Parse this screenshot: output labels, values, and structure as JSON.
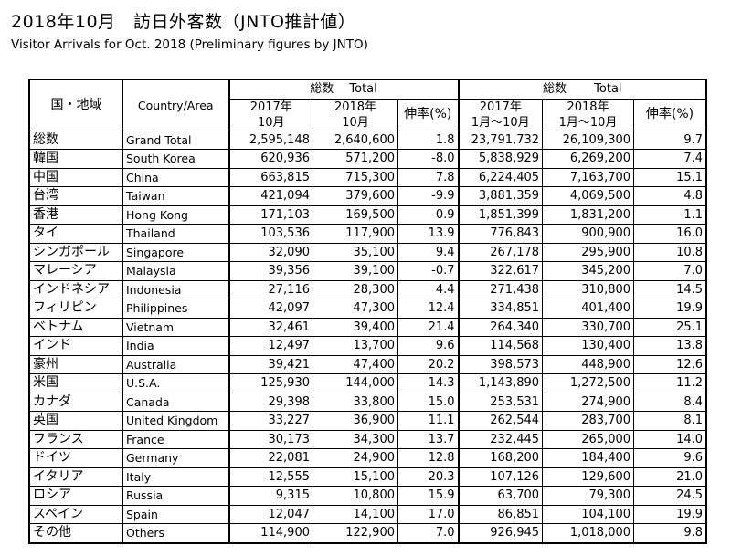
{
  "title": "2018年10月　訪日外客数（JNTO推計値）",
  "subtitle": "Visitor Arrivals for Oct. 2018 (Preliminary figures by JNTO)",
  "headers": {
    "region_jp": "国・地域",
    "region_en": "Country/Area",
    "month_group": "総数　 Total",
    "ytd_group": "総数　　 Total",
    "m2017_line1": "2017年",
    "m2017_line2": "10月",
    "m2018_line1": "2018年",
    "m2018_line2": "10月",
    "growth": "伸率(%)",
    "y2017_line1": "2017年",
    "y2017_line2": "1月～10月",
    "y2018_line1": "2018年",
    "y2018_line2": "1月～10月",
    "growth_ytd": "伸率(%)"
  },
  "rows": [
    {
      "jp": "総数",
      "en": "Grand Total",
      "m2017": "2,595,148",
      "m2018": "2,640,600",
      "mg": "1.8",
      "y2017": "23,791,732",
      "y2018": "26,109,300",
      "yg": "9.7"
    },
    {
      "jp": "韓国",
      "en": "South Korea",
      "m2017": "620,936",
      "m2018": "571,200",
      "mg": "-8.0",
      "y2017": "5,838,929",
      "y2018": "6,269,200",
      "yg": "7.4"
    },
    {
      "jp": "中国",
      "en": "China",
      "m2017": "663,815",
      "m2018": "715,300",
      "mg": "7.8",
      "y2017": "6,224,405",
      "y2018": "7,163,700",
      "yg": "15.1"
    },
    {
      "jp": "台湾",
      "en": "Taiwan",
      "m2017": "421,094",
      "m2018": "379,600",
      "mg": "-9.9",
      "y2017": "3,881,359",
      "y2018": "4,069,500",
      "yg": "4.8"
    },
    {
      "jp": "香港",
      "en": "Hong Kong",
      "m2017": "171,103",
      "m2018": "169,500",
      "mg": "-0.9",
      "y2017": "1,851,399",
      "y2018": "1,831,200",
      "yg": "-1.1"
    },
    {
      "jp": "タイ",
      "en": "Thailand",
      "m2017": "103,536",
      "m2018": "117,900",
      "mg": "13.9",
      "y2017": "776,843",
      "y2018": "900,900",
      "yg": "16.0"
    },
    {
      "jp": "シンガポール",
      "en": "Singapore",
      "m2017": "32,090",
      "m2018": "35,100",
      "mg": "9.4",
      "y2017": "267,178",
      "y2018": "295,900",
      "yg": "10.8"
    },
    {
      "jp": "マレーシア",
      "en": "Malaysia",
      "m2017": "39,356",
      "m2018": "39,100",
      "mg": "-0.7",
      "y2017": "322,617",
      "y2018": "345,200",
      "yg": "7.0"
    },
    {
      "jp": "インドネシア",
      "en": "Indonesia",
      "m2017": "27,116",
      "m2018": "28,300",
      "mg": "4.4",
      "y2017": "271,438",
      "y2018": "310,800",
      "yg": "14.5"
    },
    {
      "jp": "フィリピン",
      "en": "Philippines",
      "m2017": "42,097",
      "m2018": "47,300",
      "mg": "12.4",
      "y2017": "334,851",
      "y2018": "401,400",
      "yg": "19.9"
    },
    {
      "jp": "ベトナム",
      "en": "Vietnam",
      "m2017": "32,461",
      "m2018": "39,400",
      "mg": "21.4",
      "y2017": "264,340",
      "y2018": "330,700",
      "yg": "25.1"
    },
    {
      "jp": "インド",
      "en": "India",
      "m2017": "12,497",
      "m2018": "13,700",
      "mg": "9.6",
      "y2017": "114,568",
      "y2018": "130,400",
      "yg": "13.8"
    },
    {
      "jp": "豪州",
      "en": "Australia",
      "m2017": "39,421",
      "m2018": "47,400",
      "mg": "20.2",
      "y2017": "398,573",
      "y2018": "448,900",
      "yg": "12.6"
    },
    {
      "jp": "米国",
      "en": "U.S.A.",
      "m2017": "125,930",
      "m2018": "144,000",
      "mg": "14.3",
      "y2017": "1,143,890",
      "y2018": "1,272,500",
      "yg": "11.2"
    },
    {
      "jp": "カナダ",
      "en": "Canada",
      "m2017": "29,398",
      "m2018": "33,800",
      "mg": "15.0",
      "y2017": "253,531",
      "y2018": "274,900",
      "yg": "8.4"
    },
    {
      "jp": "英国",
      "en": "United Kingdom",
      "m2017": "33,227",
      "m2018": "36,900",
      "mg": "11.1",
      "y2017": "262,544",
      "y2018": "283,700",
      "yg": "8.1"
    },
    {
      "jp": "フランス",
      "en": "France",
      "m2017": "30,173",
      "m2018": "34,300",
      "mg": "13.7",
      "y2017": "232,445",
      "y2018": "265,000",
      "yg": "14.0"
    },
    {
      "jp": "ドイツ",
      "en": "Germany",
      "m2017": "22,081",
      "m2018": "24,900",
      "mg": "12.8",
      "y2017": "168,200",
      "y2018": "184,400",
      "yg": "9.6"
    },
    {
      "jp": "イタリア",
      "en": "Italy",
      "m2017": "12,555",
      "m2018": "15,100",
      "mg": "20.3",
      "y2017": "107,126",
      "y2018": "129,600",
      "yg": "21.0"
    },
    {
      "jp": "ロシア",
      "en": "Russia",
      "m2017": "9,315",
      "m2018": "10,800",
      "mg": "15.9",
      "y2017": "63,700",
      "y2018": "79,300",
      "yg": "24.5"
    },
    {
      "jp": "スペイン",
      "en": "Spain",
      "m2017": "12,047",
      "m2018": "14,100",
      "mg": "17.0",
      "y2017": "86,851",
      "y2018": "104,100",
      "yg": "19.9"
    },
    {
      "jp": "その他",
      "en": "Others",
      "m2017": "114,900",
      "m2018": "122,900",
      "mg": "7.0",
      "y2017": "926,945",
      "y2018": "1,018,000",
      "yg": "9.8"
    }
  ]
}
